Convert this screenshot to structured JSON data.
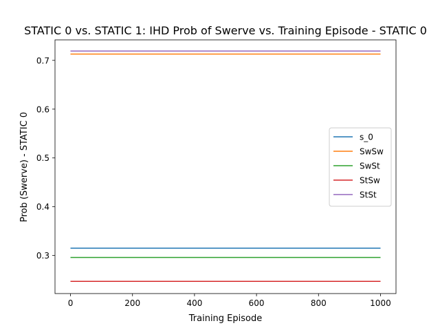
{
  "chart_data": {
    "type": "line",
    "title": "STATIC 0 vs. STATIC 1: IHD Prob of Swerve vs. Training Episode - STATIC 0",
    "xlabel": "Training Episode",
    "ylabel": "Prob (Swerve) - STATIC 0",
    "xlim": [
      -50,
      1050
    ],
    "ylim": [
      0.222,
      0.742
    ],
    "x_ticks": [
      0,
      200,
      400,
      600,
      800,
      1000
    ],
    "y_ticks": [
      0.3,
      0.4,
      0.5,
      0.6,
      0.7
    ],
    "grid": false,
    "legend_position": "center-right",
    "series": [
      {
        "name": "s_0",
        "color": "#1f77b4",
        "x": [
          0,
          1000
        ],
        "y": [
          0.315,
          0.315
        ]
      },
      {
        "name": "SwSw",
        "color": "#ff7f0e",
        "x": [
          0,
          1000
        ],
        "y": [
          0.713,
          0.713
        ]
      },
      {
        "name": "SwSt",
        "color": "#2ca02c",
        "x": [
          0,
          1000
        ],
        "y": [
          0.296,
          0.296
        ]
      },
      {
        "name": "StSw",
        "color": "#d62728",
        "x": [
          0,
          1000
        ],
        "y": [
          0.247,
          0.247
        ]
      },
      {
        "name": "StSt",
        "color": "#9467bd",
        "x": [
          0,
          1000
        ],
        "y": [
          0.719,
          0.719
        ]
      }
    ]
  }
}
